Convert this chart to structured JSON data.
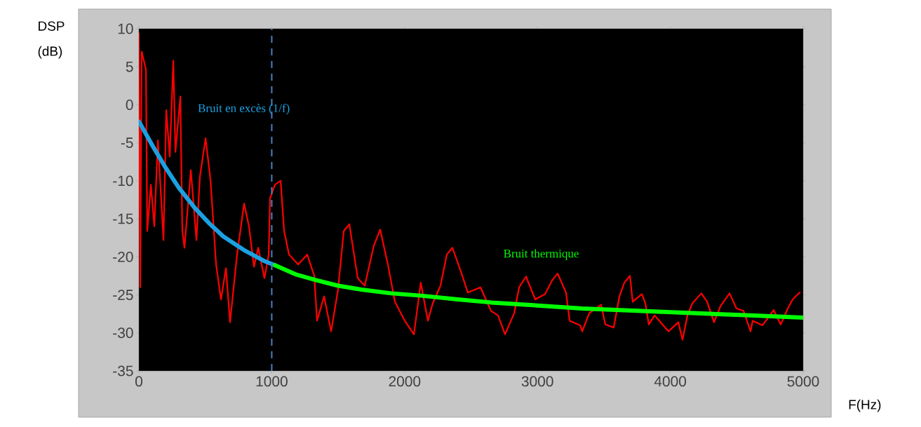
{
  "chart_data": {
    "type": "line",
    "xlabel": "F(Hz)",
    "ylabel": "DSP (dB)",
    "xlim": [
      0,
      5000
    ],
    "ylim": [
      -35,
      10
    ],
    "xticks": [
      0,
      1000,
      2000,
      3000,
      4000,
      5000
    ],
    "yticks": [
      -35,
      -30,
      -25,
      -20,
      -15,
      -10,
      -5,
      0,
      5,
      10
    ],
    "grid": false,
    "legend": false,
    "marker": "none",
    "line_style": "solid",
    "series": [
      {
        "color": "#ff0000",
        "x": [
          0,
          10,
          21,
          53,
          63,
          90,
          116,
          143,
          185,
          206,
          232,
          259,
          275,
          312,
          327,
          343,
          391,
          433,
          459,
          502,
          539,
          581,
          618,
          655,
          686,
          739,
          792,
          829,
          866,
          898,
          945,
          977,
          987,
          1024,
          1067,
          1093,
          1130,
          1199,
          1267,
          1320,
          1341,
          1394,
          1447,
          1499,
          1542,
          1584,
          1647,
          1700,
          1769,
          1816,
          1874,
          1927,
          2001,
          2070,
          2122,
          2175,
          2212,
          2270,
          2318,
          2360,
          2423,
          2476,
          2571,
          2650,
          2703,
          2756,
          2825,
          2862,
          2914,
          2983,
          3057,
          3110,
          3152,
          3215,
          3242,
          3321,
          3337,
          3390,
          3479,
          3511,
          3574,
          3617,
          3654,
          3696,
          3717,
          3786,
          3812,
          3838,
          3881,
          3986,
          4060,
          4092,
          4129,
          4166,
          4234,
          4277,
          4329,
          4377,
          4446,
          4498,
          4551,
          4604,
          4620,
          4694,
          4778,
          4831,
          4884,
          4921,
          4974
        ],
        "values": [
          9.4,
          -24,
          7,
          4.6,
          -16.6,
          -10.5,
          -16,
          -4.7,
          -17.8,
          -0.7,
          -6.8,
          5.8,
          -6.2,
          1.1,
          -16.6,
          -18.8,
          -8.6,
          -17.8,
          -9.5,
          -4.4,
          -9.9,
          -21,
          -25.6,
          -21.5,
          -28.6,
          -19.7,
          -13,
          -16,
          -21.3,
          -18.8,
          -22.8,
          -19.7,
          -12.3,
          -10.5,
          -10,
          -16.6,
          -19.7,
          -21,
          -19.7,
          -22.5,
          -28.4,
          -25.2,
          -29.8,
          -24.3,
          -16.6,
          -15.7,
          -22.8,
          -23.8,
          -18.5,
          -16.4,
          -21,
          -25.9,
          -28.4,
          -30.2,
          -23.4,
          -28.4,
          -26.1,
          -23.8,
          -19.7,
          -18.8,
          -21.9,
          -24.7,
          -24,
          -27.1,
          -27.7,
          -30.2,
          -27.4,
          -24,
          -22.6,
          -25.6,
          -24.9,
          -23.1,
          -22.2,
          -24.7,
          -28.4,
          -29,
          -29.8,
          -27.4,
          -26.3,
          -28.9,
          -29.3,
          -25.2,
          -23.4,
          -22.5,
          -25.9,
          -24.9,
          -26.1,
          -28.9,
          -27.7,
          -29.8,
          -28.6,
          -30.9,
          -27.7,
          -26.1,
          -24.8,
          -25.9,
          -28.6,
          -26.5,
          -24.8,
          -26.8,
          -27.1,
          -29.8,
          -28.4,
          -29,
          -27,
          -28.9,
          -26.8,
          -25.6,
          -24.7
        ]
      },
      {
        "name": "Bruit en excès (1/f)",
        "color": "#1ba1e2",
        "x": [
          0,
          100,
          195,
          300,
          422,
          530,
          634,
          800,
          950,
          1024
        ],
        "values": [
          -2.2,
          -5.3,
          -8.1,
          -10.9,
          -13.6,
          -15.6,
          -17.3,
          -19.2,
          -20.6,
          -21.1
        ]
      },
      {
        "name": "Bruit thermique",
        "color": "#00ff00",
        "x": [
          1024,
          1180,
          1341,
          1500,
          1674,
          1900,
          2122,
          2400,
          2650,
          3000,
          3337,
          3750,
          4166,
          4600,
          5000
        ],
        "values": [
          -21.1,
          -22.3,
          -23.1,
          -23.8,
          -24.3,
          -24.8,
          -25.1,
          -25.6,
          -26,
          -26.4,
          -26.8,
          -27.1,
          -27.4,
          -27.7,
          -28
        ]
      }
    ],
    "ref_lines": [
      {
        "axis": "x",
        "value": 1000,
        "color": "#4a7fc0",
        "line_style": "dashed"
      }
    ]
  }
}
